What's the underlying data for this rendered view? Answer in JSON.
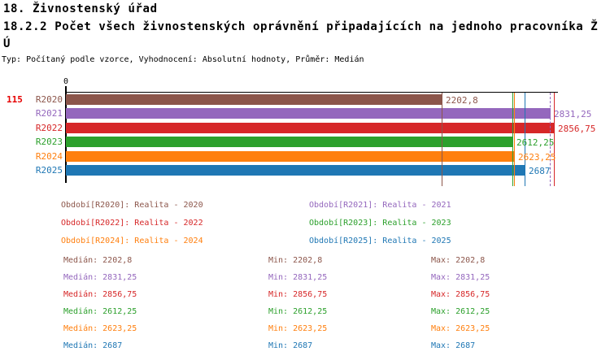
{
  "header": {
    "title": "18. Živnostenský úřad",
    "subtitle_lines": [
      "18.2.2 Počet všech živnostenských oprávnění připadajících na jednoho pracovníka Ž",
      "Ú"
    ],
    "meta": "Typ: Počítaný podle vzorce, Vyhodnocení: Absolutní hodnoty, Průměr: Medián"
  },
  "chart_data": {
    "type": "bar",
    "orientation": "horizontal",
    "title": "",
    "categories": [
      "R2020",
      "R2021",
      "R2022",
      "R2023",
      "R2024",
      "R2025"
    ],
    "values": [
      2202.8,
      2831.25,
      2856.75,
      2612.25,
      2623.25,
      2687
    ],
    "value_labels": [
      "2202,8",
      "2831,25",
      "2856,75",
      "2612,25",
      "2623,25",
      "2687"
    ],
    "colors": [
      "#8c564b",
      "#9467bd",
      "#d62728",
      "#2ca02c",
      "#ff7f0e",
      "#1f77b4"
    ],
    "xlim": [
      0,
      2880
    ],
    "x_tick_labels": [
      "0"
    ],
    "left_count_label": "115",
    "left_count_color": "#e60000",
    "median_marker_values": [
      2202.8,
      2831.25,
      2856.75,
      2612.25,
      2623.25,
      2687
    ],
    "marker_line_styles": [
      "solid",
      "dashed",
      "solid",
      "solid",
      "solid",
      "solid"
    ],
    "grid": false,
    "legend_position": "below"
  },
  "legend": {
    "items": [
      {
        "label": "Období[R2020]: Realita - 2020",
        "color": "#8c564b"
      },
      {
        "label": "Období[R2021]: Realita - 2021",
        "color": "#9467bd"
      },
      {
        "label": "Období[R2022]: Realita - 2022",
        "color": "#d62728"
      },
      {
        "label": "Období[R2023]: Realita - 2023",
        "color": "#2ca02c"
      },
      {
        "label": "Období[R2024]: Realita - 2024",
        "color": "#ff7f0e"
      },
      {
        "label": "Období[R2025]: Realita - 2025",
        "color": "#1f77b4"
      }
    ]
  },
  "stats": {
    "median_label": "Medián:",
    "min_label": "Min:",
    "max_label": "Max:",
    "rows": [
      {
        "median": "2202,8",
        "min": "2202,8",
        "max": "2202,8",
        "color": "#8c564b"
      },
      {
        "median": "2831,25",
        "min": "2831,25",
        "max": "2831,25",
        "color": "#9467bd"
      },
      {
        "median": "2856,75",
        "min": "2856,75",
        "max": "2856,75",
        "color": "#d62728"
      },
      {
        "median": "2612,25",
        "min": "2612,25",
        "max": "2612,25",
        "color": "#2ca02c"
      },
      {
        "median": "2623,25",
        "min": "2623,25",
        "max": "2623,25",
        "color": "#ff7f0e"
      },
      {
        "median": "2687",
        "min": "2687",
        "max": "2687",
        "color": "#1f77b4"
      }
    ]
  }
}
